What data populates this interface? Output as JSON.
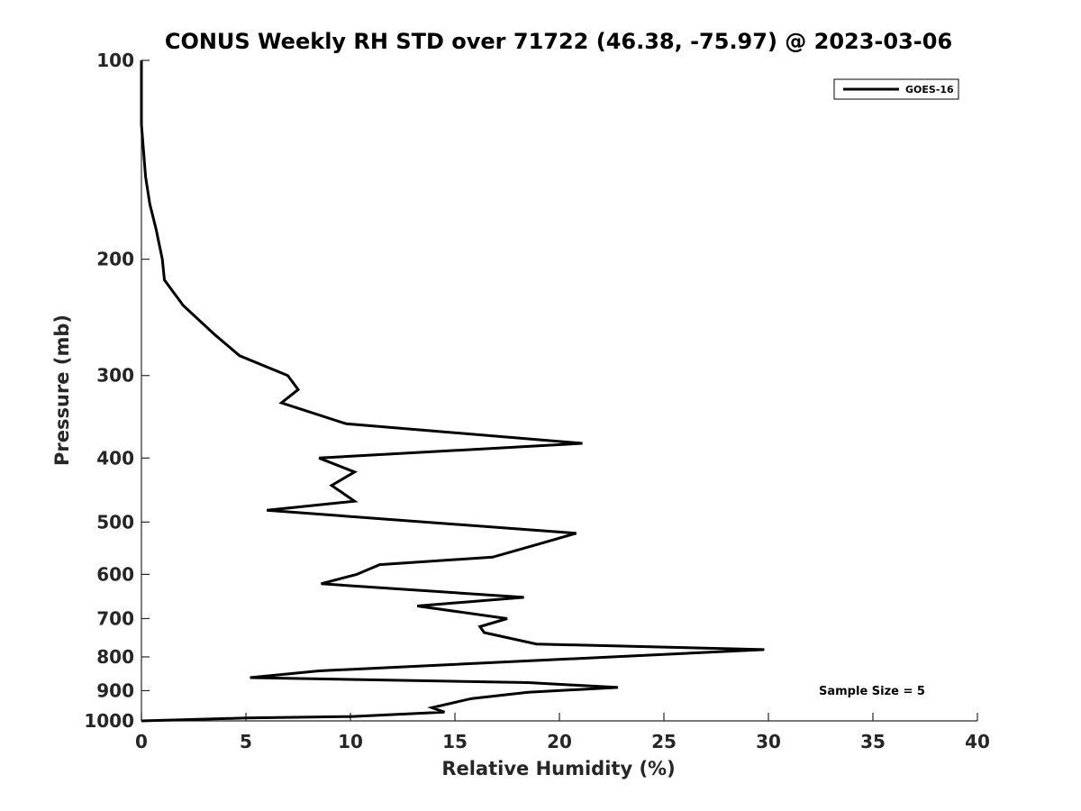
{
  "chart_data": {
    "type": "line",
    "title": "CONUS Weekly RH STD over 71722 (46.38, -75.97) @ 2023-03-06",
    "xlabel": "Relative Humidity (%)",
    "ylabel": "Pressure (mb)",
    "xlim": [
      0,
      40
    ],
    "ylim": [
      100,
      1000
    ],
    "yscale": "log",
    "yreversed": true,
    "x_ticks": [
      "0",
      "5",
      "10",
      "15",
      "20",
      "25",
      "30",
      "35",
      "40"
    ],
    "y_ticks": [
      "100",
      "200",
      "300",
      "400",
      "500",
      "600",
      "700",
      "800",
      "900",
      "1000"
    ],
    "legend": {
      "position": "top-right",
      "entries": [
        "GOES-16"
      ]
    },
    "annotation": "Sample Size = 5",
    "series": [
      {
        "name": "GOES-16",
        "color": "#000000",
        "points": [
          [
            0.0,
            100
          ],
          [
            0.0,
            125
          ],
          [
            0.2,
            150
          ],
          [
            0.4,
            165
          ],
          [
            0.7,
            180
          ],
          [
            1.0,
            200
          ],
          [
            1.1,
            215
          ],
          [
            2.0,
            235
          ],
          [
            3.5,
            260
          ],
          [
            4.7,
            280
          ],
          [
            7.0,
            300
          ],
          [
            7.5,
            315
          ],
          [
            6.7,
            330
          ],
          [
            9.8,
            355
          ],
          [
            21.1,
            380
          ],
          [
            8.5,
            400
          ],
          [
            10.2,
            420
          ],
          [
            9.1,
            440
          ],
          [
            10.2,
            465
          ],
          [
            6.0,
            480
          ],
          [
            20.8,
            520
          ],
          [
            19.0,
            540
          ],
          [
            16.8,
            565
          ],
          [
            11.4,
            580
          ],
          [
            10.3,
            600
          ],
          [
            8.6,
            620
          ],
          [
            18.3,
            650
          ],
          [
            13.2,
            670
          ],
          [
            17.5,
            700
          ],
          [
            16.2,
            720
          ],
          [
            16.4,
            735
          ],
          [
            18.9,
            765
          ],
          [
            29.8,
            780
          ],
          [
            8.5,
            840
          ],
          [
            5.2,
            860
          ],
          [
            18.5,
            875
          ],
          [
            22.8,
            890
          ],
          [
            18.5,
            905
          ],
          [
            15.8,
            925
          ],
          [
            13.9,
            955
          ],
          [
            14.5,
            970
          ],
          [
            10.0,
            985
          ],
          [
            5.0,
            990
          ],
          [
            0.0,
            1000
          ]
        ]
      }
    ]
  }
}
